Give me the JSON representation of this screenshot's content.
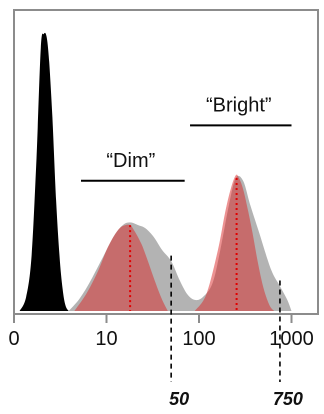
{
  "chart_data": {
    "type": "area",
    "title": "",
    "xlabel": "",
    "ylabel": "",
    "x_scale": "log",
    "xlim": [
      1,
      2000
    ],
    "ylim": [
      0,
      1
    ],
    "grid": false,
    "x_ticks": [
      {
        "value": 1,
        "label": "0"
      },
      {
        "value": 10,
        "label": "10"
      },
      {
        "value": 100,
        "label": "100"
      },
      {
        "value": 1000,
        "label": "1000"
      }
    ],
    "series": [
      {
        "kind": "background-peak",
        "color": "#000000",
        "x": [
          1.15,
          1.35,
          1.55,
          1.75,
          1.95,
          2.1,
          2.25,
          2.4,
          2.6,
          2.85,
          3.1,
          3.35,
          3.6,
          3.9
        ],
        "y": [
          0,
          0.05,
          0.2,
          0.55,
          0.95,
          1.0,
          0.99,
          0.9,
          0.7,
          0.4,
          0.2,
          0.08,
          0.02,
          0
        ]
      },
      {
        "kind": "total-distribution",
        "color": "#b3b3b3",
        "x": [
          3.9,
          5,
          6.5,
          9,
          12,
          15,
          18,
          22,
          26,
          32,
          40,
          50,
          62,
          75,
          90,
          110,
          140,
          170,
          210,
          250,
          300,
          360,
          450,
          600,
          750,
          900,
          1000
        ],
        "y": [
          0,
          0.04,
          0.1,
          0.19,
          0.27,
          0.31,
          0.32,
          0.31,
          0.3,
          0.27,
          0.22,
          0.18,
          0.11,
          0.06,
          0.04,
          0.05,
          0.1,
          0.22,
          0.38,
          0.48,
          0.47,
          0.38,
          0.28,
          0.15,
          0.09,
          0.04,
          0
        ]
      },
      {
        "kind": "dim-population",
        "color": "#d9262680",
        "x": [
          4.5,
          6,
          8,
          10,
          12,
          14,
          16,
          18,
          20,
          24,
          28,
          34,
          40,
          46
        ],
        "y": [
          0,
          0.06,
          0.14,
          0.22,
          0.27,
          0.3,
          0.31,
          0.31,
          0.29,
          0.24,
          0.18,
          0.1,
          0.04,
          0
        ]
      },
      {
        "kind": "bright-population",
        "color": "#d9262680",
        "x": [
          90,
          120,
          160,
          190,
          220,
          250,
          270,
          300,
          340,
          380,
          430,
          500,
          580,
          650
        ],
        "y": [
          0,
          0.06,
          0.22,
          0.35,
          0.44,
          0.49,
          0.48,
          0.44,
          0.36,
          0.28,
          0.18,
          0.08,
          0.02,
          0
        ]
      }
    ],
    "medians": [
      {
        "x": 18,
        "y": 0.31,
        "color": "#e00000"
      },
      {
        "x": 255,
        "y": 0.48,
        "color": "#e00000"
      }
    ],
    "thresholds": [
      {
        "value": 50,
        "label": "50",
        "y": 0.2
      },
      {
        "value": 750,
        "label": "750",
        "y": 0.11
      }
    ],
    "annotations": [
      {
        "label": "“Dim”",
        "x_from": 5.3,
        "x_to": 70,
        "y": 0.47
      },
      {
        "label": "“Bright”",
        "x_from": 80,
        "x_to": 1000,
        "y": 0.67
      }
    ]
  }
}
